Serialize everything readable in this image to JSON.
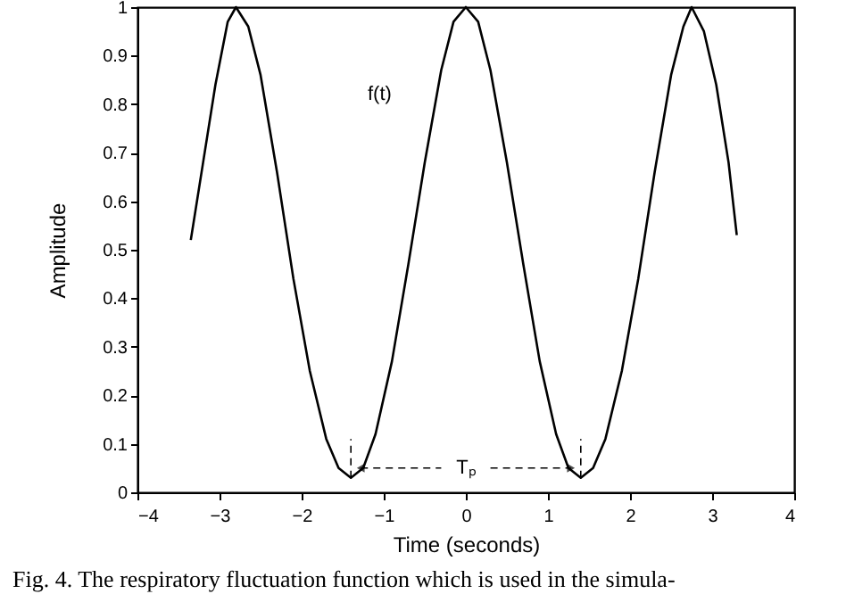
{
  "chart_data": {
    "type": "line",
    "xlabel": "Time (seconds)",
    "ylabel": "Amplitude",
    "annotations": [
      "Fig. 4. The respiratory fluctuation function which is used in the simula-",
      {
        "text": "Tₚ",
        "x": 1.4,
        "y": 0.03
      }
    ],
    "x": [
      -3.35,
      -3.2,
      -3.05,
      -2.9,
      -2.8,
      -2.65,
      -2.5,
      -2.3,
      -2.1,
      -1.9,
      -1.7,
      -1.55,
      -1.4,
      -1.25,
      -1.1,
      -0.9,
      -0.7,
      -0.5,
      -0.3,
      -0.15,
      0,
      0.15,
      0.3,
      0.5,
      0.7,
      0.9,
      1.1,
      1.25,
      1.4,
      1.55,
      1.7,
      1.9,
      2.1,
      2.3,
      2.5,
      2.65,
      2.75,
      2.9,
      3.05,
      3.2,
      3.3
    ],
    "series": [
      {
        "name": "f(t)",
        "color": "#000000",
        "values": [
          0.52,
          0.68,
          0.84,
          0.97,
          1.0,
          0.96,
          0.86,
          0.66,
          0.44,
          0.25,
          0.11,
          0.05,
          0.03,
          0.05,
          0.12,
          0.27,
          0.47,
          0.68,
          0.87,
          0.97,
          1.0,
          0.97,
          0.87,
          0.68,
          0.47,
          0.27,
          0.12,
          0.05,
          0.03,
          0.05,
          0.11,
          0.25,
          0.44,
          0.66,
          0.86,
          0.96,
          1.0,
          0.95,
          0.84,
          0.68,
          0.53
        ]
      }
    ],
    "xlim": [
      -4,
      4
    ],
    "xticks": [
      -4,
      -3,
      -2,
      -1,
      0,
      1,
      2,
      3,
      4
    ],
    "ylim": [
      0,
      1
    ],
    "yticks": [
      0,
      0.1,
      0.2,
      0.3,
      0.4,
      0.5,
      0.6,
      0.7,
      0.8,
      0.9,
      1
    ],
    "grid": false,
    "legend": false,
    "marker": "none",
    "line_style": "solid"
  }
}
